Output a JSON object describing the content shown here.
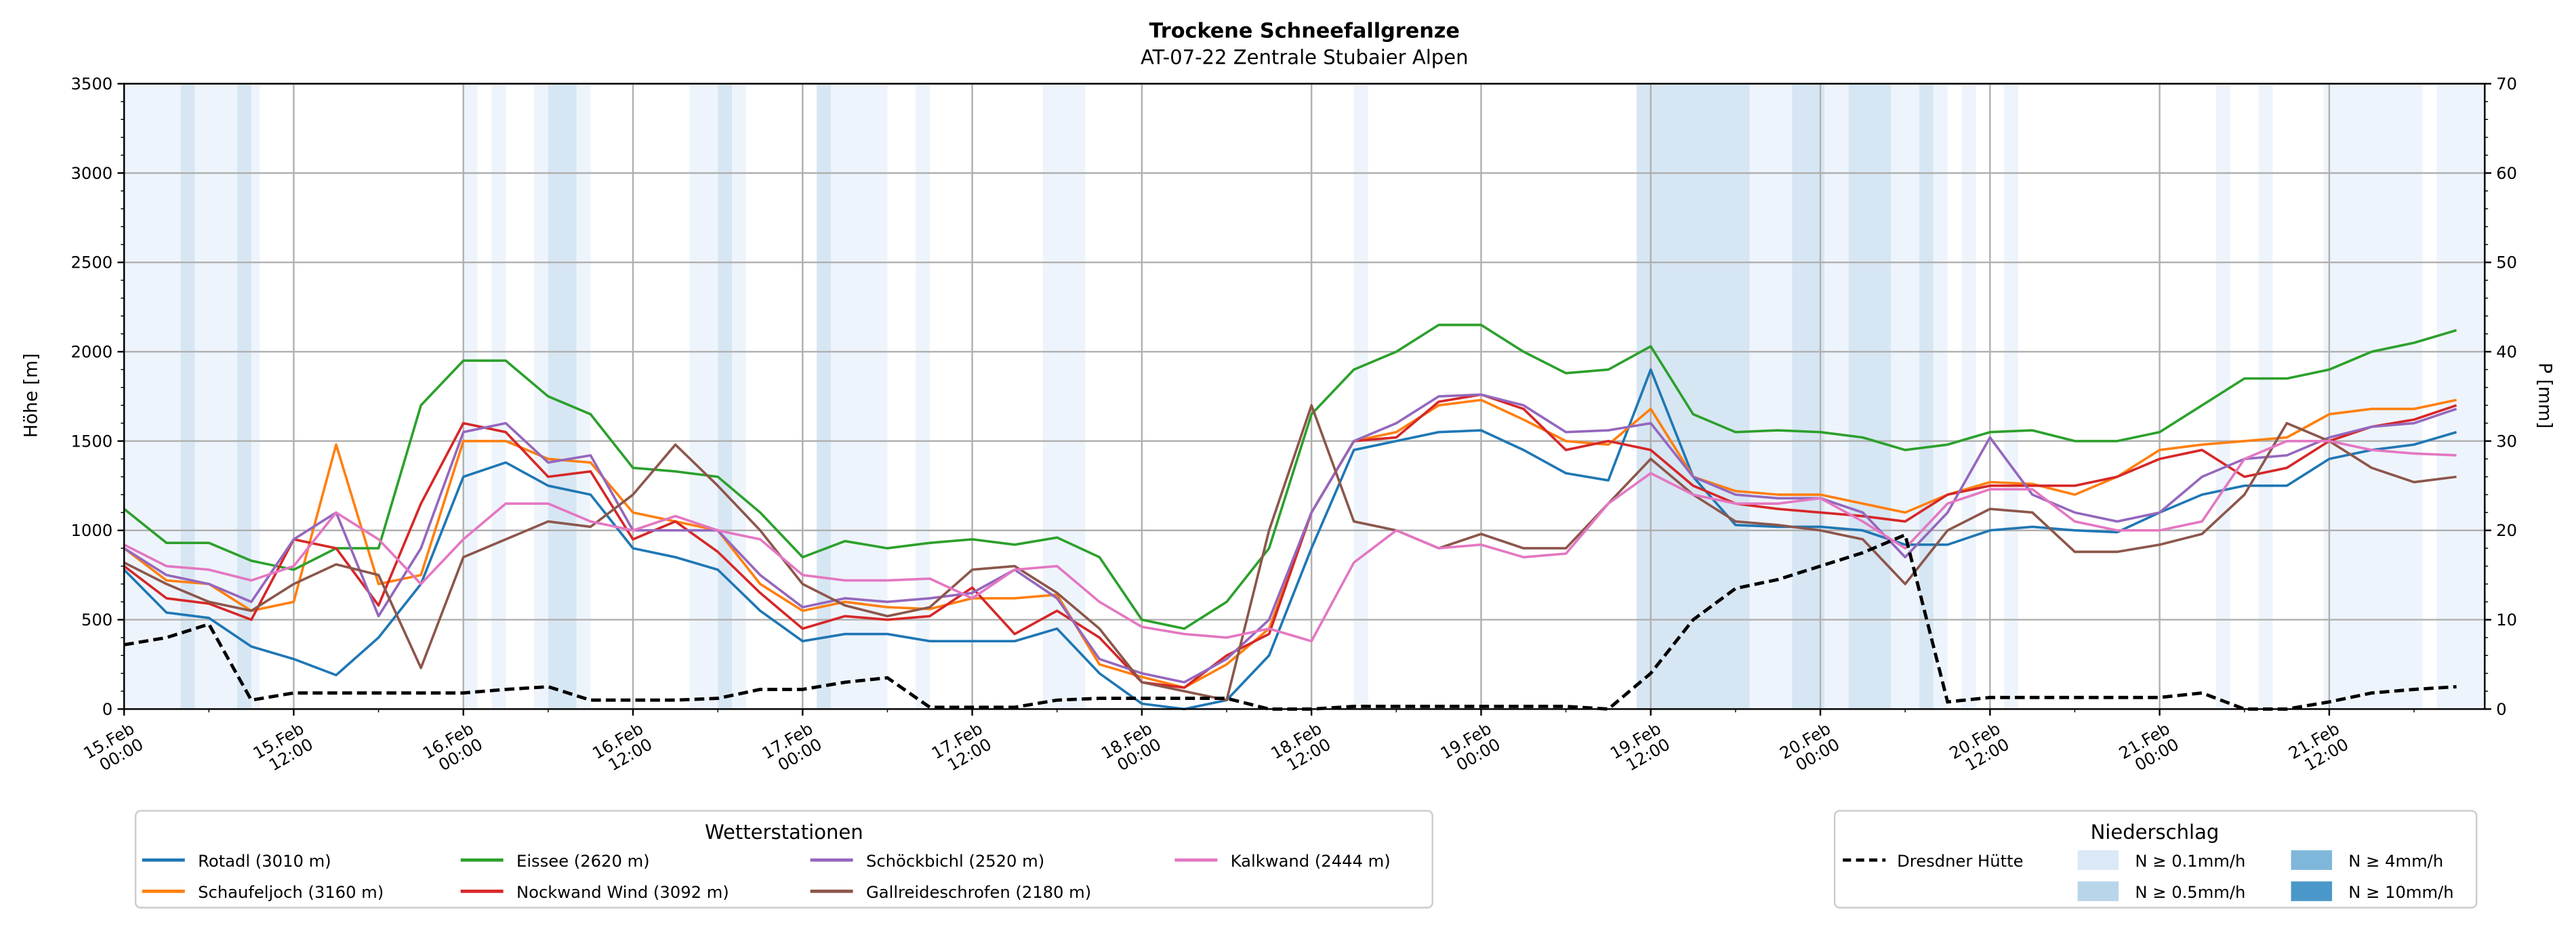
{
  "chart_data": {
    "type": "line",
    "title": "Trockene Schneefallgrenze",
    "subtitle": "AT-07-22 Zentrale Stubaier Alpen",
    "ylabel": "Höhe [m]",
    "y2label": "P [mm]",
    "ylim": [
      0,
      3500
    ],
    "y2lim": [
      0,
      70
    ],
    "xlim_hours": [
      0,
      167
    ],
    "grid": true,
    "y_ticks": [
      "0",
      "500",
      "1000",
      "1500",
      "2000",
      "2500",
      "3000",
      "3500"
    ],
    "y2_ticks": [
      "0",
      "10",
      "20",
      "30",
      "40",
      "50",
      "60",
      "70"
    ],
    "x_ticks": [
      [
        "15.Feb",
        "00:00"
      ],
      [
        "15.Feb",
        "12:00"
      ],
      [
        "16.Feb",
        "00:00"
      ],
      [
        "16.Feb",
        "12:00"
      ],
      [
        "17.Feb",
        "00:00"
      ],
      [
        "17.Feb",
        "12:00"
      ],
      [
        "18.Feb",
        "00:00"
      ],
      [
        "18.Feb",
        "12:00"
      ],
      [
        "19.Feb",
        "00:00"
      ],
      [
        "19.Feb",
        "12:00"
      ],
      [
        "20.Feb",
        "00:00"
      ],
      [
        "20.Feb",
        "12:00"
      ],
      [
        "21.Feb",
        "00:00"
      ],
      [
        "21.Feb",
        "12:00"
      ]
    ],
    "x_hours_step": 3,
    "series": [
      {
        "name": "Rotadl (3010 m)",
        "color": "#1f77b4",
        "values": [
          780,
          540,
          510,
          350,
          280,
          190,
          400,
          700,
          1300,
          1380,
          1250,
          1200,
          900,
          850,
          780,
          550,
          380,
          420,
          420,
          380,
          380,
          380,
          450,
          200,
          30,
          0,
          50,
          300,
          900,
          1450,
          1500,
          1550,
          1560,
          1450,
          1320,
          1280,
          1900,
          1300,
          1030,
          1020,
          1020,
          1000,
          920,
          920,
          1000,
          1020,
          1000,
          990,
          1100,
          1200,
          1250,
          1250,
          1400,
          1450,
          1480,
          1550
        ]
      },
      {
        "name": "Schaufeljoch (3160 m)",
        "color": "#ff7f0e",
        "values": [
          900,
          720,
          700,
          550,
          600,
          1480,
          700,
          750,
          1500,
          1500,
          1400,
          1380,
          1100,
          1050,
          1000,
          700,
          550,
          600,
          570,
          560,
          620,
          620,
          640,
          250,
          180,
          120,
          250,
          450,
          1100,
          1500,
          1550,
          1700,
          1730,
          1620,
          1500,
          1480,
          1680,
          1300,
          1220,
          1200,
          1200,
          1150,
          1100,
          1200,
          1270,
          1260,
          1200,
          1300,
          1450,
          1480,
          1500,
          1520,
          1650,
          1680,
          1680,
          1730
        ]
      },
      {
        "name": "Eissee (2620 m)",
        "color": "#2ca02c",
        "values": [
          1120,
          930,
          930,
          830,
          780,
          900,
          900,
          1700,
          1950,
          1950,
          1750,
          1650,
          1350,
          1330,
          1300,
          1100,
          850,
          940,
          900,
          930,
          950,
          920,
          960,
          850,
          500,
          450,
          600,
          900,
          1650,
          1900,
          2000,
          2150,
          2150,
          2000,
          1880,
          1900,
          2030,
          1650,
          1550,
          1560,
          1550,
          1520,
          1450,
          1480,
          1550,
          1560,
          1500,
          1500,
          1550,
          1700,
          1850,
          1850,
          1900,
          2000,
          2050,
          2120
        ]
      },
      {
        "name": "Nockwand Wind (3092 m)",
        "color": "#d62728",
        "values": [
          800,
          620,
          590,
          500,
          950,
          900,
          580,
          1150,
          1600,
          1550,
          1300,
          1330,
          950,
          1050,
          880,
          650,
          450,
          520,
          500,
          520,
          680,
          420,
          550,
          400,
          150,
          120,
          300,
          420,
          1100,
          1500,
          1520,
          1720,
          1760,
          1680,
          1450,
          1500,
          1450,
          1250,
          1150,
          1120,
          1100,
          1080,
          1050,
          1200,
          1250,
          1250,
          1250,
          1300,
          1400,
          1450,
          1300,
          1350,
          1500,
          1580,
          1620,
          1700
        ]
      },
      {
        "name": "Schöckbichl (2520 m)",
        "color": "#9467bd",
        "values": [
          900,
          750,
          700,
          600,
          950,
          1100,
          520,
          900,
          1550,
          1600,
          1380,
          1420,
          1000,
          1000,
          1000,
          750,
          570,
          620,
          600,
          620,
          650,
          780,
          620,
          280,
          200,
          150,
          280,
          500,
          1100,
          1500,
          1600,
          1750,
          1760,
          1700,
          1550,
          1560,
          1600,
          1300,
          1200,
          1180,
          1180,
          1100,
          850,
          1100,
          1520,
          1200,
          1100,
          1050,
          1100,
          1300,
          1400,
          1420,
          1520,
          1580,
          1600,
          1680
        ]
      },
      {
        "name": "Gallreideschrofen (2180 m)",
        "color": "#8c564b",
        "values": [
          820,
          700,
          600,
          550,
          700,
          810,
          750,
          230,
          850,
          950,
          1050,
          1020,
          1200,
          1480,
          1250,
          1000,
          700,
          580,
          520,
          570,
          780,
          800,
          650,
          450,
          150,
          100,
          50,
          1000,
          1700,
          1050,
          1000,
          900,
          980,
          900,
          900,
          1150,
          1400,
          1200,
          1050,
          1030,
          1000,
          950,
          700,
          1000,
          1120,
          1100,
          880,
          880,
          920,
          980,
          1200,
          1600,
          1500,
          1350,
          1270,
          1300
        ]
      },
      {
        "name": "Kalkwand (2444 m)",
        "color": "#e377c2",
        "values": [
          920,
          800,
          780,
          720,
          800,
          1100,
          950,
          700,
          950,
          1150,
          1150,
          1050,
          1000,
          1080,
          1000,
          950,
          750,
          720,
          720,
          730,
          620,
          780,
          800,
          600,
          460,
          420,
          400,
          450,
          380,
          820,
          1000,
          900,
          920,
          850,
          870,
          1150,
          1320,
          1200,
          1150,
          1150,
          1180,
          1050,
          900,
          1150,
          1230,
          1230,
          1050,
          1000,
          1000,
          1050,
          1400,
          1500,
          1500,
          1450,
          1430,
          1420
        ]
      }
    ],
    "precip_series": {
      "name": "Dresdner Hütte",
      "color": "#000000",
      "unit": "mm",
      "values": [
        7.2,
        8,
        9.5,
        1,
        1.8,
        1.8,
        1.8,
        1.8,
        1.8,
        2.2,
        2.5,
        1,
        1,
        1,
        1.2,
        2.2,
        2.2,
        3,
        3.5,
        0.2,
        0.2,
        0.2,
        1,
        1.2,
        1.2,
        1.2,
        1.2,
        0,
        0,
        0.3,
        0.3,
        0.3,
        0.3,
        0.3,
        0.3,
        0,
        4,
        10,
        13.5,
        14.5,
        16,
        17.5,
        19.5,
        0.8,
        1.3,
        1.3,
        1.3,
        1.3,
        1.3,
        1.8,
        0,
        0,
        0.8,
        1.8,
        2.2,
        2.5
      ]
    },
    "precip_bands_hours": [
      [
        0,
        9.6,
        0
      ],
      [
        4,
        5,
        1
      ],
      [
        8,
        9,
        1
      ],
      [
        24,
        25,
        0
      ],
      [
        26,
        27,
        0
      ],
      [
        29,
        33,
        0
      ],
      [
        30,
        32,
        1
      ],
      [
        40,
        44,
        0
      ],
      [
        42,
        43,
        1
      ],
      [
        49,
        54,
        0
      ],
      [
        49,
        50,
        1
      ],
      [
        56,
        57,
        0
      ],
      [
        65,
        68,
        0
      ],
      [
        87,
        88,
        0
      ],
      [
        107,
        115,
        1
      ],
      [
        115,
        118,
        0
      ],
      [
        118,
        120.3,
        1
      ],
      [
        120.3,
        122,
        0
      ],
      [
        122,
        125,
        1
      ],
      [
        125,
        127,
        0
      ],
      [
        127,
        128,
        1
      ],
      [
        128,
        129,
        0
      ],
      [
        130,
        131,
        0
      ],
      [
        133,
        134,
        0
      ],
      [
        148,
        149,
        0
      ],
      [
        151,
        152,
        0
      ],
      [
        155.6,
        162.6,
        0
      ],
      [
        163.6,
        167,
        0
      ]
    ],
    "legend_stations": {
      "title": "Wetterstationen",
      "placement": "bottom-left"
    },
    "legend_precip": {
      "title": "Niederschlag",
      "placement": "bottom-right",
      "levels": [
        {
          "label": "N ≥ 0.1mm/h",
          "color": "#dbe9f6"
        },
        {
          "label": "N ≥ 0.5mm/h",
          "color": "#b9d5ea"
        },
        {
          "label": "N ≥ 4mm/h",
          "color": "#7fb7da"
        },
        {
          "label": "N ≥ 10mm/h",
          "color": "#4a98c9"
        }
      ]
    }
  }
}
